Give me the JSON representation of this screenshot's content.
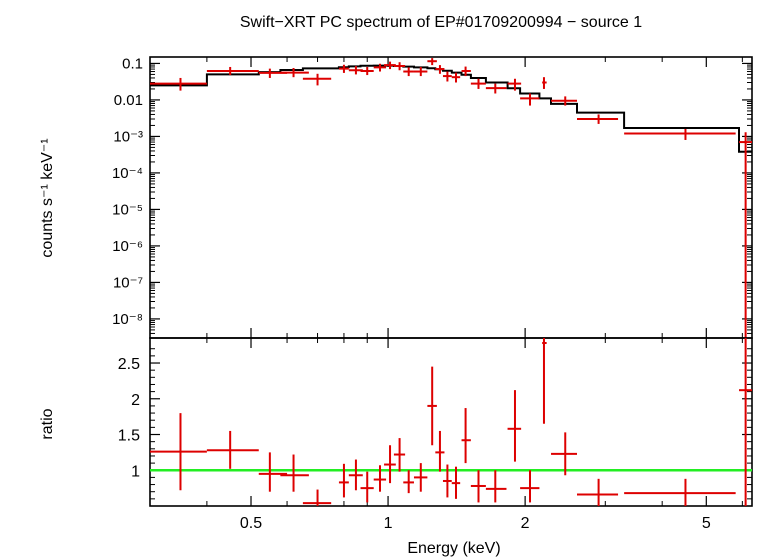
{
  "chart_data": [
    {
      "type": "step-line-with-error-bars",
      "title": "Swift−XRT PC spectrum of EP#01709200994 − source 1",
      "ylabel": "counts s⁻¹ keV⁻¹",
      "xlabel": "",
      "xscale": "log",
      "yscale": "log",
      "xlim": [
        0.3,
        6.3
      ],
      "ylim": [
        3e-09,
        0.15
      ],
      "y_ticks": [
        {
          "label": "0.1",
          "value": 0.1
        },
        {
          "label": "0.01",
          "value": 0.01
        },
        {
          "label": "10⁻³",
          "value": 0.001
        },
        {
          "label": "10⁻⁴",
          "value": 0.0001
        },
        {
          "label": "10⁻⁵",
          "value": 1e-05
        },
        {
          "label": "10⁻⁶",
          "value": 1e-06
        },
        {
          "label": "10⁻⁷",
          "value": 1e-07
        },
        {
          "label": "10⁻⁸",
          "value": 1e-08
        }
      ],
      "data_color": "#dd0000",
      "model_color": "#000000",
      "data_points": [
        {
          "x": 0.35,
          "xlo": 0.3,
          "xhi": 0.4,
          "y": 0.028,
          "ylo": 0.018,
          "yhi": 0.04
        },
        {
          "x": 0.45,
          "xlo": 0.4,
          "xhi": 0.52,
          "y": 0.062,
          "ylo": 0.048,
          "yhi": 0.08
        },
        {
          "x": 0.55,
          "xlo": 0.52,
          "xhi": 0.6,
          "y": 0.055,
          "ylo": 0.04,
          "yhi": 0.072
        },
        {
          "x": 0.62,
          "xlo": 0.58,
          "xhi": 0.67,
          "y": 0.056,
          "ylo": 0.042,
          "yhi": 0.075
        },
        {
          "x": 0.7,
          "xlo": 0.65,
          "xhi": 0.75,
          "y": 0.038,
          "ylo": 0.025,
          "yhi": 0.052
        },
        {
          "x": 0.8,
          "xlo": 0.78,
          "xhi": 0.82,
          "y": 0.072,
          "ylo": 0.055,
          "yhi": 0.092
        },
        {
          "x": 0.85,
          "xlo": 0.82,
          "xhi": 0.88,
          "y": 0.065,
          "ylo": 0.05,
          "yhi": 0.085
        },
        {
          "x": 0.9,
          "xlo": 0.87,
          "xhi": 0.93,
          "y": 0.062,
          "ylo": 0.048,
          "yhi": 0.08
        },
        {
          "x": 0.96,
          "xlo": 0.93,
          "xhi": 0.99,
          "y": 0.078,
          "ylo": 0.06,
          "yhi": 0.098
        },
        {
          "x": 1.01,
          "xlo": 0.98,
          "xhi": 1.04,
          "y": 0.09,
          "ylo": 0.07,
          "yhi": 0.112
        },
        {
          "x": 1.06,
          "xlo": 1.03,
          "xhi": 1.09,
          "y": 0.085,
          "ylo": 0.065,
          "yhi": 0.108
        },
        {
          "x": 1.11,
          "xlo": 1.08,
          "xhi": 1.14,
          "y": 0.06,
          "ylo": 0.045,
          "yhi": 0.078
        },
        {
          "x": 1.18,
          "xlo": 1.14,
          "xhi": 1.22,
          "y": 0.06,
          "ylo": 0.045,
          "yhi": 0.08
        },
        {
          "x": 1.25,
          "xlo": 1.22,
          "xhi": 1.28,
          "y": 0.115,
          "ylo": 0.09,
          "yhi": 0.14
        },
        {
          "x": 1.3,
          "xlo": 1.27,
          "xhi": 1.33,
          "y": 0.07,
          "ylo": 0.052,
          "yhi": 0.09
        },
        {
          "x": 1.35,
          "xlo": 1.32,
          "xhi": 1.38,
          "y": 0.045,
          "ylo": 0.032,
          "yhi": 0.06
        },
        {
          "x": 1.41,
          "xlo": 1.38,
          "xhi": 1.44,
          "y": 0.042,
          "ylo": 0.03,
          "yhi": 0.056
        },
        {
          "x": 1.48,
          "xlo": 1.45,
          "xhi": 1.52,
          "y": 0.062,
          "ylo": 0.045,
          "yhi": 0.082
        },
        {
          "x": 1.58,
          "xlo": 1.52,
          "xhi": 1.64,
          "y": 0.028,
          "ylo": 0.02,
          "yhi": 0.038
        },
        {
          "x": 1.72,
          "xlo": 1.64,
          "xhi": 1.82,
          "y": 0.021,
          "ylo": 0.015,
          "yhi": 0.028
        },
        {
          "x": 1.9,
          "xlo": 1.83,
          "xhi": 1.96,
          "y": 0.028,
          "ylo": 0.018,
          "yhi": 0.038
        },
        {
          "x": 2.05,
          "xlo": 1.95,
          "xhi": 2.15,
          "y": 0.011,
          "ylo": 0.007,
          "yhi": 0.015
        },
        {
          "x": 2.2,
          "xlo": 2.18,
          "xhi": 2.23,
          "y": 0.03,
          "ylo": 0.02,
          "yhi": 0.042
        },
        {
          "x": 2.45,
          "xlo": 2.28,
          "xhi": 2.6,
          "y": 0.0095,
          "ylo": 0.007,
          "yhi": 0.0125
        },
        {
          "x": 2.9,
          "xlo": 2.6,
          "xhi": 3.2,
          "y": 0.003,
          "ylo": 0.0022,
          "yhi": 0.004
        },
        {
          "x": 4.5,
          "xlo": 3.3,
          "xhi": 5.8,
          "y": 0.0012,
          "ylo": 0.0008,
          "yhi": 0.0016
        },
        {
          "x": 6.1,
          "xlo": 5.9,
          "xhi": 6.3,
          "y": 0.0007,
          "ylo": 1e-09,
          "yhi": 0.0013
        }
      ],
      "model_steps": [
        {
          "x0": 0.3,
          "x1": 0.4,
          "y": 0.025
        },
        {
          "x0": 0.4,
          "x1": 0.52,
          "y": 0.05
        },
        {
          "x0": 0.52,
          "x1": 0.58,
          "y": 0.058
        },
        {
          "x0": 0.58,
          "x1": 0.65,
          "y": 0.066
        },
        {
          "x0": 0.65,
          "x1": 0.78,
          "y": 0.073
        },
        {
          "x0": 0.78,
          "x1": 0.82,
          "y": 0.079
        },
        {
          "x0": 0.82,
          "x1": 0.87,
          "y": 0.083
        },
        {
          "x0": 0.87,
          "x1": 0.93,
          "y": 0.086
        },
        {
          "x0": 0.93,
          "x1": 0.98,
          "y": 0.087
        },
        {
          "x0": 0.98,
          "x1": 1.03,
          "y": 0.087
        },
        {
          "x0": 1.03,
          "x1": 1.08,
          "y": 0.085
        },
        {
          "x0": 1.08,
          "x1": 1.14,
          "y": 0.082
        },
        {
          "x0": 1.14,
          "x1": 1.22,
          "y": 0.078
        },
        {
          "x0": 1.22,
          "x1": 1.27,
          "y": 0.074
        },
        {
          "x0": 1.27,
          "x1": 1.32,
          "y": 0.069
        },
        {
          "x0": 1.32,
          "x1": 1.38,
          "y": 0.063
        },
        {
          "x0": 1.38,
          "x1": 1.45,
          "y": 0.056
        },
        {
          "x0": 1.45,
          "x1": 1.52,
          "y": 0.049
        },
        {
          "x0": 1.52,
          "x1": 1.64,
          "y": 0.04
        },
        {
          "x0": 1.64,
          "x1": 1.83,
          "y": 0.03
        },
        {
          "x0": 1.83,
          "x1": 1.95,
          "y": 0.021
        },
        {
          "x0": 1.95,
          "x1": 2.15,
          "y": 0.015
        },
        {
          "x0": 2.15,
          "x1": 2.28,
          "y": 0.011
        },
        {
          "x0": 2.28,
          "x1": 2.6,
          "y": 0.0078
        },
        {
          "x0": 2.6,
          "x1": 3.3,
          "y": 0.0045
        },
        {
          "x0": 3.3,
          "x1": 5.9,
          "y": 0.0017
        },
        {
          "x0": 5.9,
          "x1": 6.3,
          "y": 0.00038
        }
      ]
    },
    {
      "type": "scatter-with-error-bars",
      "ylabel": "ratio",
      "xlabel": "Energy (keV)",
      "xscale": "log",
      "xlim": [
        0.3,
        6.3
      ],
      "ylim": [
        0.5,
        2.85
      ],
      "x_ticks": [
        {
          "label": "0.5",
          "value": 0.5
        },
        {
          "label": "1",
          "value": 1
        },
        {
          "label": "2",
          "value": 2
        },
        {
          "label": "5",
          "value": 5
        }
      ],
      "y_ticks": [
        {
          "label": "1",
          "value": 1
        },
        {
          "label": "1.5",
          "value": 1.5
        },
        {
          "label": "2",
          "value": 2
        },
        {
          "label": "2.5",
          "value": 2.5
        }
      ],
      "reference_line": {
        "y": 1,
        "color": "#22ee22"
      },
      "data_color": "#dd0000",
      "data_points": [
        {
          "x": 0.35,
          "xlo": 0.3,
          "xhi": 0.4,
          "y": 1.26,
          "ylo": 0.72,
          "yhi": 1.8
        },
        {
          "x": 0.45,
          "xlo": 0.4,
          "xhi": 0.52,
          "y": 1.28,
          "ylo": 1.02,
          "yhi": 1.55
        },
        {
          "x": 0.55,
          "xlo": 0.52,
          "xhi": 0.6,
          "y": 0.95,
          "ylo": 0.7,
          "yhi": 1.25
        },
        {
          "x": 0.62,
          "xlo": 0.58,
          "xhi": 0.67,
          "y": 0.93,
          "ylo": 0.7,
          "yhi": 1.22
        },
        {
          "x": 0.7,
          "xlo": 0.65,
          "xhi": 0.75,
          "y": 0.54,
          "ylo": 0.45,
          "yhi": 0.73
        },
        {
          "x": 0.8,
          "xlo": 0.78,
          "xhi": 0.82,
          "y": 0.83,
          "ylo": 0.62,
          "yhi": 1.09
        },
        {
          "x": 0.85,
          "xlo": 0.82,
          "xhi": 0.88,
          "y": 0.93,
          "ylo": 0.72,
          "yhi": 1.15
        },
        {
          "x": 0.9,
          "xlo": 0.87,
          "xhi": 0.93,
          "y": 0.75,
          "ylo": 0.55,
          "yhi": 0.98
        },
        {
          "x": 0.96,
          "xlo": 0.93,
          "xhi": 0.99,
          "y": 0.87,
          "ylo": 0.7,
          "yhi": 1.07
        },
        {
          "x": 1.01,
          "xlo": 0.98,
          "xhi": 1.04,
          "y": 1.08,
          "ylo": 0.82,
          "yhi": 1.35
        },
        {
          "x": 1.06,
          "xlo": 1.03,
          "xhi": 1.09,
          "y": 1.22,
          "ylo": 0.98,
          "yhi": 1.45
        },
        {
          "x": 1.11,
          "xlo": 1.08,
          "xhi": 1.14,
          "y": 0.83,
          "ylo": 0.68,
          "yhi": 1.0
        },
        {
          "x": 1.18,
          "xlo": 1.14,
          "xhi": 1.22,
          "y": 0.9,
          "ylo": 0.7,
          "yhi": 1.1
        },
        {
          "x": 1.25,
          "xlo": 1.22,
          "xhi": 1.28,
          "y": 1.9,
          "ylo": 1.35,
          "yhi": 2.45
        },
        {
          "x": 1.3,
          "xlo": 1.27,
          "xhi": 1.33,
          "y": 1.25,
          "ylo": 0.98,
          "yhi": 1.55
        },
        {
          "x": 1.35,
          "xlo": 1.32,
          "xhi": 1.38,
          "y": 0.85,
          "ylo": 0.62,
          "yhi": 1.08
        },
        {
          "x": 1.41,
          "xlo": 1.38,
          "xhi": 1.44,
          "y": 0.82,
          "ylo": 0.6,
          "yhi": 1.05
        },
        {
          "x": 1.48,
          "xlo": 1.45,
          "xhi": 1.52,
          "y": 1.42,
          "ylo": 1.1,
          "yhi": 1.87
        },
        {
          "x": 1.58,
          "xlo": 1.52,
          "xhi": 1.64,
          "y": 0.78,
          "ylo": 0.55,
          "yhi": 1.0
        },
        {
          "x": 1.72,
          "xlo": 1.64,
          "xhi": 1.82,
          "y": 0.74,
          "ylo": 0.55,
          "yhi": 1.0
        },
        {
          "x": 1.9,
          "xlo": 1.83,
          "xhi": 1.96,
          "y": 1.58,
          "ylo": 1.12,
          "yhi": 2.12
        },
        {
          "x": 2.05,
          "xlo": 1.95,
          "xhi": 2.15,
          "y": 0.75,
          "ylo": 0.55,
          "yhi": 1.0
        },
        {
          "x": 2.2,
          "xlo": 2.18,
          "xhi": 2.23,
          "y": 2.78,
          "ylo": 1.65,
          "yhi": 2.85
        },
        {
          "x": 2.45,
          "xlo": 2.28,
          "xhi": 2.6,
          "y": 1.23,
          "ylo": 0.93,
          "yhi": 1.53
        },
        {
          "x": 2.9,
          "xlo": 2.6,
          "xhi": 3.2,
          "y": 0.66,
          "ylo": 0.5,
          "yhi": 0.88
        },
        {
          "x": 4.5,
          "xlo": 3.3,
          "xhi": 5.8,
          "y": 0.68,
          "ylo": 0.5,
          "yhi": 0.88
        },
        {
          "x": 6.1,
          "xlo": 5.9,
          "xhi": 6.3,
          "y": 2.12,
          "ylo": 0.5,
          "yhi": 2.85
        }
      ]
    }
  ]
}
